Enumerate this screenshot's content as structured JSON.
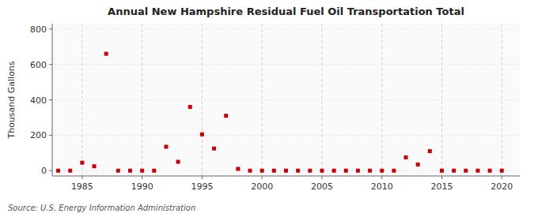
{
  "chart_data": {
    "type": "scatter",
    "title": "Annual New Hampshire Residual Fuel Oil Transportation Total",
    "ylabel": "Thousand Gallons",
    "source": "Source: U.S. Energy Information Administration",
    "color": "#cc0000",
    "marker": "square",
    "grid": true,
    "xlim": [
      1982.5,
      2021.5
    ],
    "ylim": [
      -30,
      830
    ],
    "xticks": [
      1985,
      1990,
      1995,
      2000,
      2005,
      2010,
      2015,
      2020
    ],
    "yticks": [
      0,
      200,
      400,
      600,
      800
    ],
    "x": [
      1983,
      1984,
      1985,
      1986,
      1987,
      1988,
      1989,
      1990,
      1991,
      1992,
      1993,
      1994,
      1995,
      1996,
      1997,
      1998,
      1999,
      2000,
      2001,
      2002,
      2003,
      2004,
      2005,
      2006,
      2007,
      2008,
      2009,
      2010,
      2011,
      2012,
      2013,
      2014,
      2015,
      2016,
      2017,
      2018,
      2019,
      2020
    ],
    "values": [
      0,
      0,
      45,
      25,
      660,
      0,
      0,
      0,
      0,
      135,
      50,
      360,
      205,
      125,
      310,
      10,
      0,
      0,
      0,
      0,
      0,
      0,
      0,
      0,
      0,
      0,
      0,
      0,
      0,
      75,
      35,
      110,
      0,
      0,
      0,
      0,
      0,
      0
    ]
  }
}
